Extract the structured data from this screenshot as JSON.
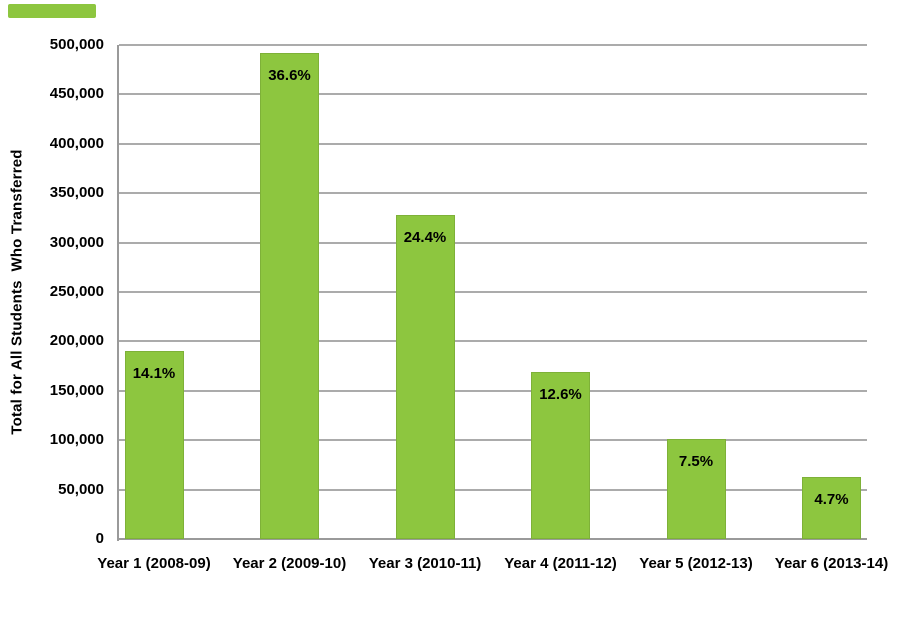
{
  "colors": {
    "bar_fill": "#8dc63f",
    "gridline": "#ababab",
    "axis": "#9a9a9a",
    "text": "#000000",
    "background": "#ffffff"
  },
  "decor": {
    "top_left_stripe_color": "#8dc63f"
  },
  "chart_data": {
    "type": "bar",
    "title": "",
    "xlabel": "",
    "ylabel": "Total for All Students  Who Transferred",
    "categories": [
      "Year 1 (2008-09)",
      "Year 2 (2009-10)",
      "Year 3 (2010-11)",
      "Year 4 (2011-12)",
      "Year 5 (2012-13)",
      "Year 6 (2013-14)"
    ],
    "values": [
      190000,
      492000,
      328000,
      169000,
      101000,
      63000
    ],
    "bar_labels": [
      "14.1%",
      "36.6%",
      "24.4%",
      "12.6%",
      "7.5%",
      "4.7%"
    ],
    "ylim": [
      0,
      500000
    ],
    "ytick_step": 50000,
    "ytick_labels": [
      "0",
      "50,000",
      "100,000",
      "150,000",
      "200,000",
      "250,000",
      "300,000",
      "350,000",
      "400,000",
      "450,000",
      "500,000"
    ],
    "grid": true,
    "legend": "none"
  }
}
